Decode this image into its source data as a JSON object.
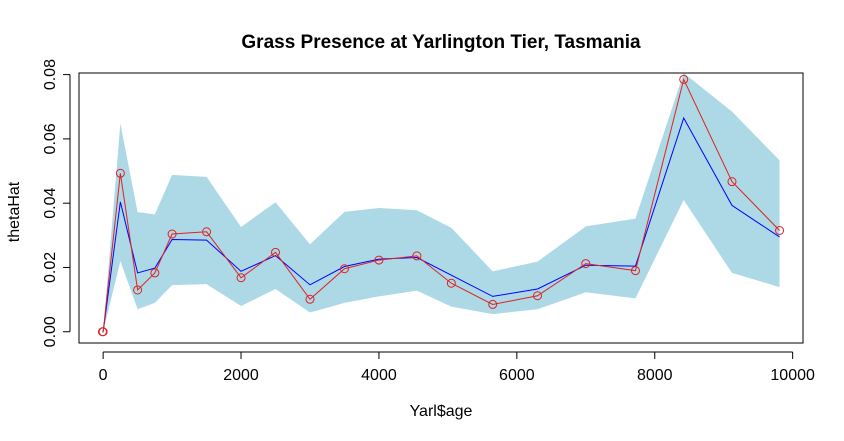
{
  "chart_data": {
    "type": "line",
    "title": "Grass Presence at Yarlington Tier, Tasmania",
    "xlabel": "Yarl$age",
    "ylabel": "thetaHat",
    "xlim": [
      -350,
      10150
    ],
    "ylim": [
      -0.0035,
      0.0805
    ],
    "x_ticks": [
      0,
      2000,
      4000,
      6000,
      8000,
      10000
    ],
    "x_tick_labels": [
      "0",
      "2000",
      "4000",
      "6000",
      "8000",
      "10000"
    ],
    "y_ticks": [
      0.0,
      0.02,
      0.04,
      0.06,
      0.08
    ],
    "y_tick_labels": [
      "0.00",
      "0.02",
      "0.04",
      "0.06",
      "0.08"
    ],
    "x": [
      -10,
      0,
      250,
      500,
      750,
      1000,
      1500,
      2000,
      2500,
      3000,
      3500,
      4000,
      4550,
      5050,
      5650,
      6300,
      7000,
      7720,
      8420,
      9120,
      9810
    ],
    "series": [
      {
        "kind": "band",
        "color": "#add8e6",
        "lower": [
          0.0,
          0.0,
          0.022,
          0.007,
          0.009,
          0.0145,
          0.0148,
          0.008,
          0.0133,
          0.006,
          0.009,
          0.011,
          0.0128,
          0.0078,
          0.0055,
          0.007,
          0.0123,
          0.0104,
          0.041,
          0.0183,
          0.0139
        ],
        "upper": [
          0.0,
          0.0,
          0.0648,
          0.0372,
          0.0365,
          0.0488,
          0.0482,
          0.0326,
          0.0403,
          0.0272,
          0.0373,
          0.0385,
          0.0378,
          0.0323,
          0.0188,
          0.0218,
          0.0328,
          0.0352,
          0.0805,
          0.0685,
          0.0533
        ]
      },
      {
        "kind": "line",
        "color": "#0000ff",
        "values": [
          0.0,
          0.0,
          0.0404,
          0.0183,
          0.0198,
          0.0287,
          0.0285,
          0.0188,
          0.0237,
          0.0146,
          0.0203,
          0.0226,
          0.0231,
          0.0176,
          0.011,
          0.0133,
          0.0207,
          0.0204,
          0.0665,
          0.0393,
          0.0295
        ]
      },
      {
        "kind": "line-points",
        "color": "#dd2222",
        "values": [
          0.0,
          0.0,
          0.0493,
          0.013,
          0.0183,
          0.0304,
          0.0311,
          0.0168,
          0.0247,
          0.0101,
          0.0196,
          0.0223,
          0.0236,
          0.0151,
          0.0085,
          0.0112,
          0.0212,
          0.019,
          0.0785,
          0.0467,
          0.0315
        ]
      }
    ]
  }
}
